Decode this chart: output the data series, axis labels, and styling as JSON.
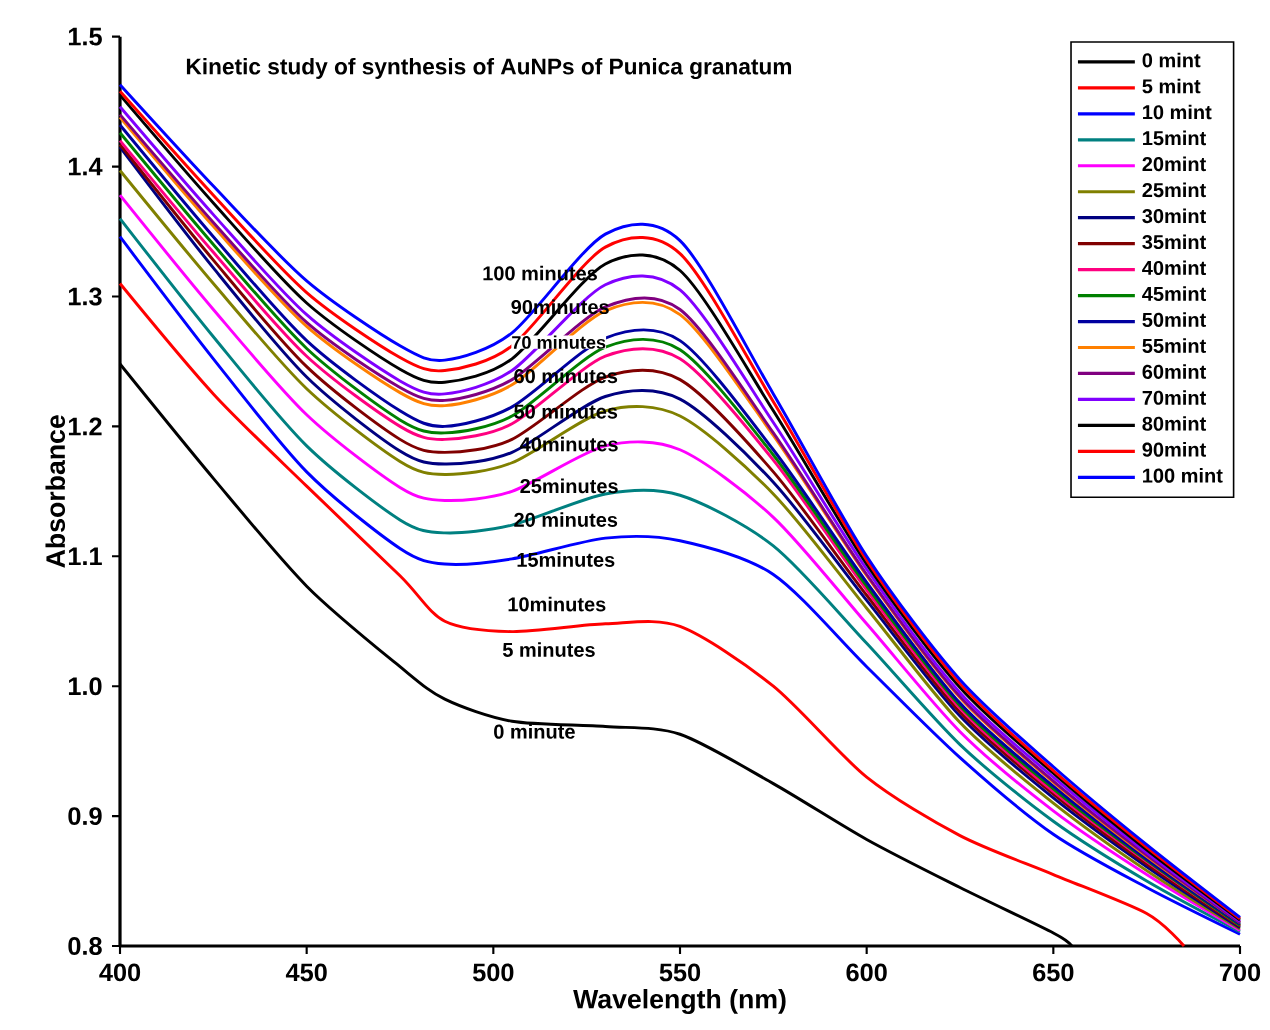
{
  "chart_data": {
    "type": "line",
    "title": "Kinetic study of synthesis of AuNPs of Punica granatum",
    "xlabel": "Wavelength (nm)",
    "ylabel": "Absorbance",
    "xlim": [
      400,
      700
    ],
    "ylim": [
      0.8,
      1.5
    ],
    "xticks": [
      400,
      450,
      500,
      550,
      600,
      650,
      700
    ],
    "yticks": [
      0.8,
      0.9,
      {
        "value": 1.0,
        "label": "1.0"
      },
      1.1,
      1.2,
      1.3,
      1.4,
      1.5
    ],
    "grid": false,
    "legend": "top right",
    "marker": "none",
    "line_style": "solid",
    "x": [
      400,
      425,
      450,
      475,
      487,
      505,
      530,
      550,
      575,
      600,
      625,
      650,
      675,
      700
    ],
    "series": [
      {
        "name": "0 mint",
        "color": "#000000",
        "x": [
          400,
          425,
          450,
          475,
          487,
          505,
          530,
          550,
          575,
          600,
          625,
          650,
          655
        ],
        "values": [
          1.248,
          1.16,
          1.077,
          1.015,
          0.99,
          0.973,
          0.969,
          0.963,
          0.925,
          0.882,
          0.845,
          0.81,
          0.8
        ]
      },
      {
        "name": "5 mint",
        "color": "#ff0000",
        "x": [
          400,
          425,
          450,
          475,
          487,
          505,
          530,
          550,
          575,
          600,
          625,
          650,
          675,
          685
        ],
        "values": [
          1.31,
          1.225,
          1.154,
          1.085,
          1.05,
          1.042,
          1.048,
          1.046,
          1.0,
          0.93,
          0.885,
          0.855,
          0.825,
          0.8
        ]
      },
      {
        "name": "10 mint",
        "color": "#0000ff",
        "values": [
          1.346,
          1.252,
          1.165,
          1.106,
          1.094,
          1.098,
          1.114,
          1.112,
          1.086,
          1.015,
          0.945,
          0.886,
          0.845,
          0.809
        ]
      },
      {
        "name": "15mint",
        "color": "#008080",
        "values": [
          1.36,
          1.269,
          1.185,
          1.128,
          1.118,
          1.124,
          1.148,
          1.147,
          1.108,
          1.033,
          0.955,
          0.896,
          0.85,
          0.811
        ]
      },
      {
        "name": "20mint",
        "color": "#ff00ff",
        "values": [
          1.378,
          1.29,
          1.209,
          1.153,
          1.143,
          1.15,
          1.185,
          1.182,
          1.13,
          1.048,
          0.965,
          0.904,
          0.855,
          0.812
        ]
      },
      {
        "name": "25mint",
        "color": "#808000",
        "values": [
          1.397,
          1.31,
          1.229,
          1.173,
          1.163,
          1.172,
          1.212,
          1.208,
          1.148,
          1.06,
          0.972,
          0.91,
          0.858,
          0.813
        ]
      },
      {
        "name": "30mint",
        "color": "#000080",
        "values": [
          1.415,
          1.322,
          1.238,
          1.181,
          1.171,
          1.18,
          1.223,
          1.221,
          1.157,
          1.066,
          0.977,
          0.914,
          0.861,
          0.814
        ]
      },
      {
        "name": "35mint",
        "color": "#800000",
        "values": [
          1.417,
          1.328,
          1.246,
          1.19,
          1.18,
          1.19,
          1.238,
          1.236,
          1.165,
          1.07,
          0.98,
          0.917,
          0.863,
          0.815
        ]
      },
      {
        "name": "40mint",
        "color": "#ff0080",
        "values": [
          1.42,
          1.334,
          1.254,
          1.2,
          1.19,
          1.202,
          1.254,
          1.252,
          1.174,
          1.074,
          0.983,
          0.919,
          0.865,
          0.816
        ]
      },
      {
        "name": "45mint",
        "color": "#008000",
        "values": [
          1.426,
          1.34,
          1.26,
          1.205,
          1.195,
          1.208,
          1.261,
          1.259,
          1.178,
          1.077,
          0.985,
          0.921,
          0.866,
          0.816
        ]
      },
      {
        "name": "50mint",
        "color": "#0000a0",
        "values": [
          1.432,
          1.346,
          1.266,
          1.212,
          1.2,
          1.215,
          1.268,
          1.266,
          1.182,
          1.08,
          0.987,
          0.923,
          0.867,
          0.817
        ]
      },
      {
        "name": "55mint",
        "color": "#ff8000",
        "values": [
          1.438,
          1.354,
          1.277,
          1.226,
          1.216,
          1.232,
          1.289,
          1.286,
          1.193,
          1.085,
          0.991,
          0.926,
          0.869,
          0.818
        ]
      },
      {
        "name": "60mint",
        "color": "#800080",
        "values": [
          1.44,
          1.357,
          1.28,
          1.23,
          1.22,
          1.236,
          1.292,
          1.29,
          1.195,
          1.086,
          0.992,
          0.927,
          0.87,
          0.818
        ]
      },
      {
        "name": "70mint",
        "color": "#8000ff",
        "values": [
          1.446,
          1.363,
          1.286,
          1.235,
          1.225,
          1.243,
          1.309,
          1.305,
          1.203,
          1.09,
          0.995,
          0.93,
          0.872,
          0.819
        ]
      },
      {
        "name": "80mint",
        "color": "#000000",
        "values": [
          1.455,
          1.372,
          1.295,
          1.244,
          1.234,
          1.252,
          1.325,
          1.32,
          1.212,
          1.094,
          0.999,
          0.933,
          0.874,
          0.82
        ]
      },
      {
        "name": "90mint",
        "color": "#ff0000",
        "values": [
          1.458,
          1.378,
          1.303,
          1.253,
          1.243,
          1.262,
          1.338,
          1.333,
          1.219,
          1.097,
          1.002,
          0.935,
          0.876,
          0.821
        ]
      },
      {
        "name": "100 mint",
        "color": "#0000ff",
        "values": [
          1.463,
          1.385,
          1.312,
          1.262,
          1.251,
          1.272,
          1.348,
          1.343,
          1.225,
          1.1,
          1.005,
          0.938,
          0.878,
          0.822
        ]
      }
    ],
    "annotations": [
      "100 minutes",
      "90minutes",
      "70 minutes",
      "60 minutes",
      "50 minutes",
      "40minutes",
      "25minutes",
      "20 minutes",
      "15minutes",
      "10minutes",
      "5 minutes",
      "0 minute"
    ]
  }
}
